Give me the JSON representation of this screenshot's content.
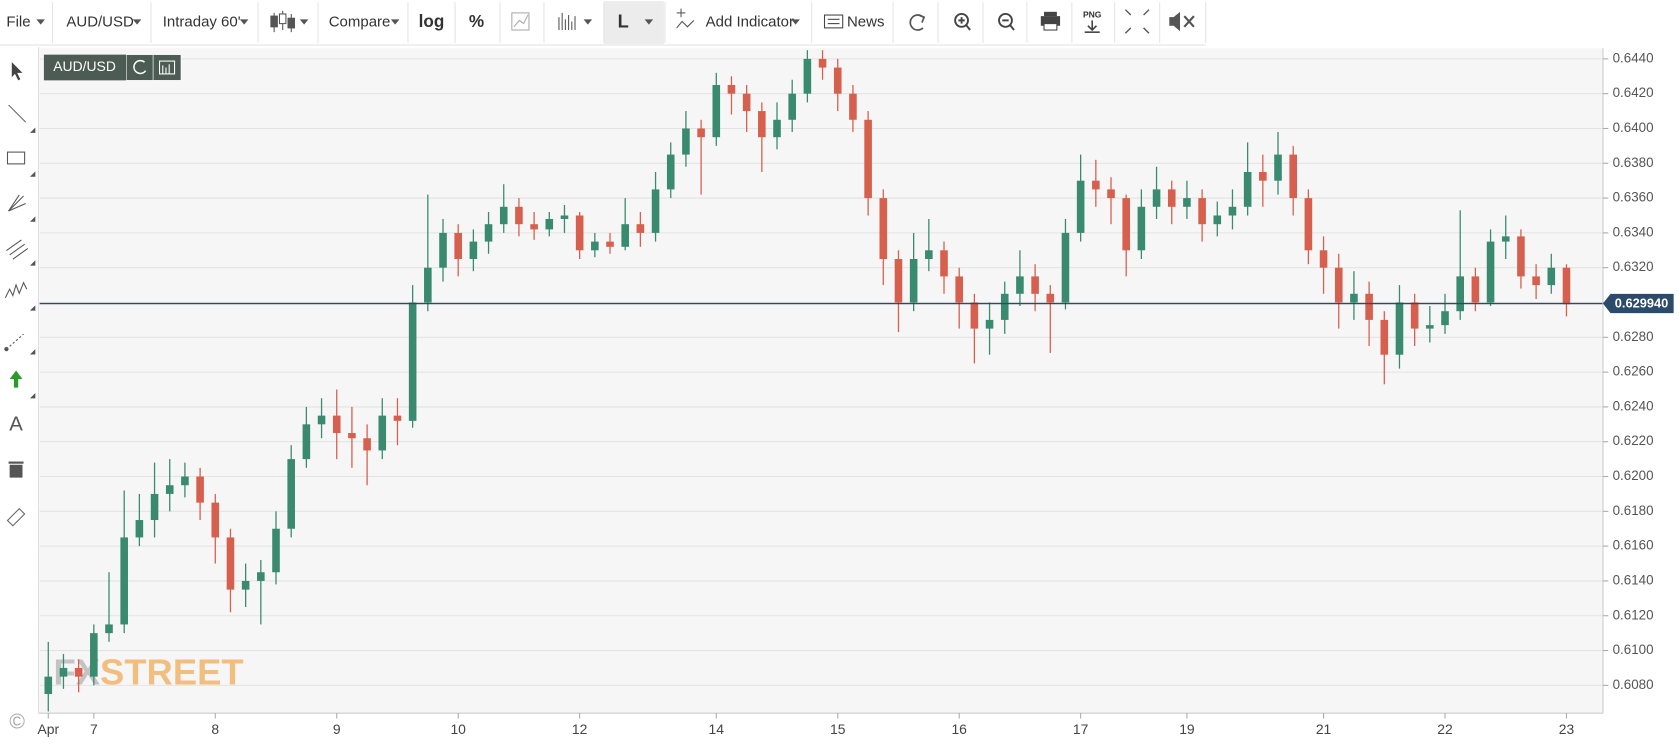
{
  "toolbar": {
    "items": [
      "File",
      "AUD/USD",
      "Intraday 60'",
      "Compare",
      "log",
      "%",
      "L",
      "Add Indicator",
      "News",
      "PNG"
    ]
  },
  "copyright": "©",
  "chart_data": {
    "type": "candlestick",
    "symbol": "AUD/USD",
    "watermark": [
      "FX",
      "STREET"
    ],
    "categories": [
      "Apr",
      null,
      null,
      "7",
      null,
      null,
      null,
      null,
      null,
      null,
      null,
      "8",
      null,
      null,
      null,
      null,
      null,
      null,
      null,
      "9",
      null,
      null,
      null,
      null,
      null,
      null,
      null,
      "10",
      null,
      null,
      null,
      null,
      null,
      null,
      null,
      "12",
      null,
      null,
      null,
      null,
      null,
      null,
      null,
      null,
      "14",
      null,
      null,
      null,
      null,
      null,
      null,
      null,
      "15",
      null,
      null,
      null,
      null,
      null,
      null,
      null,
      "16",
      null,
      null,
      null,
      null,
      null,
      null,
      null,
      "17",
      null,
      null,
      null,
      null,
      null,
      null,
      "19",
      null,
      null,
      null,
      null,
      null,
      null,
      null,
      null,
      "21",
      null,
      null,
      null,
      null,
      null,
      null,
      null,
      "22",
      null,
      null,
      null,
      null,
      null,
      null,
      null,
      "23"
    ],
    "open": [
      0.6075,
      0.6085,
      0.609,
      0.6085,
      0.611,
      0.6115,
      0.6165,
      0.6175,
      0.619,
      0.6195,
      0.62,
      0.6185,
      0.6165,
      0.6135,
      0.614,
      0.6145,
      0.617,
      0.621,
      0.623,
      0.6235,
      0.6225,
      0.6222,
      0.6215,
      0.6235,
      0.6232,
      0.63,
      0.632,
      0.634,
      0.6325,
      0.6335,
      0.6345,
      0.6355,
      0.6345,
      0.6342,
      0.6348,
      0.635,
      0.633,
      0.6335,
      0.6332,
      0.6345,
      0.634,
      0.6365,
      0.6385,
      0.64,
      0.6395,
      0.6425,
      0.642,
      0.641,
      0.6395,
      0.6405,
      0.642,
      0.644,
      0.6435,
      0.642,
      0.6405,
      0.636,
      0.6325,
      0.63,
      0.6325,
      0.633,
      0.6315,
      0.63,
      0.6285,
      0.629,
      0.6305,
      0.6315,
      0.6305,
      0.63,
      0.634,
      0.637,
      0.6365,
      0.636,
      0.633,
      0.6355,
      0.6365,
      0.6355,
      0.636,
      0.6345,
      0.635,
      0.6355,
      0.6375,
      0.637,
      0.6385,
      0.636,
      0.633,
      0.632,
      0.63,
      0.6305,
      0.629,
      0.627,
      0.63,
      0.6285,
      0.6287,
      0.6295,
      0.6315,
      0.63,
      0.6335,
      0.6338,
      0.6315,
      0.631,
      0.632
    ],
    "high": [
      0.6105,
      0.6098,
      0.6095,
      0.6115,
      0.6145,
      0.6192,
      0.619,
      0.6208,
      0.621,
      0.6208,
      0.6205,
      0.619,
      0.617,
      0.615,
      0.6152,
      0.618,
      0.6218,
      0.624,
      0.6245,
      0.625,
      0.624,
      0.623,
      0.6245,
      0.6245,
      0.631,
      0.6362,
      0.6348,
      0.6345,
      0.6342,
      0.6352,
      0.6368,
      0.636,
      0.6352,
      0.6352,
      0.6356,
      0.6352,
      0.634,
      0.634,
      0.636,
      0.6352,
      0.6375,
      0.6392,
      0.641,
      0.6405,
      0.6432,
      0.643,
      0.6425,
      0.6415,
      0.6415,
      0.6428,
      0.6445,
      0.6445,
      0.644,
      0.6425,
      0.641,
      0.6365,
      0.633,
      0.634,
      0.6348,
      0.6335,
      0.632,
      0.6305,
      0.63,
      0.6312,
      0.633,
      0.6322,
      0.631,
      0.6348,
      0.6385,
      0.6382,
      0.6372,
      0.6362,
      0.6365,
      0.6378,
      0.637,
      0.637,
      0.6365,
      0.6358,
      0.6365,
      0.6392,
      0.6385,
      0.6398,
      0.639,
      0.6365,
      0.6338,
      0.6328,
      0.6318,
      0.6312,
      0.6295,
      0.631,
      0.6305,
      0.6298,
      0.6305,
      0.6353,
      0.632,
      0.6342,
      0.635,
      0.6342,
      0.6322,
      0.6328,
      0.6322
    ],
    "low": [
      0.6065,
      0.6078,
      0.6076,
      0.608,
      0.6105,
      0.611,
      0.616,
      0.6165,
      0.618,
      0.6188,
      0.6175,
      0.615,
      0.6122,
      0.6125,
      0.6115,
      0.6138,
      0.6165,
      0.6205,
      0.6222,
      0.621,
      0.6205,
      0.6195,
      0.621,
      0.6218,
      0.6228,
      0.6295,
      0.6312,
      0.6315,
      0.6318,
      0.6328,
      0.634,
      0.6338,
      0.6336,
      0.6338,
      0.634,
      0.6325,
      0.6326,
      0.6328,
      0.633,
      0.6332,
      0.6335,
      0.636,
      0.6378,
      0.6362,
      0.639,
      0.6408,
      0.6398,
      0.6375,
      0.6388,
      0.6398,
      0.6415,
      0.6428,
      0.641,
      0.6398,
      0.635,
      0.631,
      0.6283,
      0.6295,
      0.6318,
      0.6305,
      0.6285,
      0.6265,
      0.627,
      0.6282,
      0.6298,
      0.6295,
      0.6271,
      0.6296,
      0.6335,
      0.6355,
      0.6345,
      0.6315,
      0.6325,
      0.6348,
      0.6345,
      0.6348,
      0.6335,
      0.6338,
      0.6342,
      0.635,
      0.6355,
      0.6362,
      0.635,
      0.6322,
      0.6305,
      0.6285,
      0.629,
      0.6275,
      0.6253,
      0.6262,
      0.6275,
      0.6277,
      0.6282,
      0.629,
      0.6295,
      0.6298,
      0.6325,
      0.6308,
      0.6302,
      0.6305,
      0.6292
    ],
    "close": [
      0.6085,
      0.609,
      0.6085,
      0.611,
      0.6115,
      0.6165,
      0.6175,
      0.619,
      0.6195,
      0.62,
      0.6185,
      0.6165,
      0.6135,
      0.614,
      0.6145,
      0.617,
      0.621,
      0.623,
      0.6235,
      0.6225,
      0.6222,
      0.6215,
      0.6235,
      0.6232,
      0.63,
      0.632,
      0.634,
      0.6325,
      0.6335,
      0.6345,
      0.6355,
      0.6345,
      0.6342,
      0.6348,
      0.635,
      0.633,
      0.6335,
      0.6332,
      0.6345,
      0.634,
      0.6365,
      0.6385,
      0.64,
      0.6395,
      0.6425,
      0.642,
      0.641,
      0.6395,
      0.6405,
      0.642,
      0.644,
      0.6435,
      0.642,
      0.6405,
      0.636,
      0.6325,
      0.63,
      0.6325,
      0.633,
      0.6315,
      0.63,
      0.6285,
      0.629,
      0.6305,
      0.6315,
      0.6305,
      0.63,
      0.634,
      0.637,
      0.6365,
      0.636,
      0.633,
      0.6355,
      0.6365,
      0.6355,
      0.636,
      0.6345,
      0.635,
      0.6355,
      0.6375,
      0.637,
      0.6385,
      0.636,
      0.633,
      0.632,
      0.63,
      0.6305,
      0.629,
      0.627,
      0.63,
      0.6285,
      0.6287,
      0.6295,
      0.6315,
      0.63,
      0.6335,
      0.6338,
      0.6315,
      0.631,
      0.632,
      0.6299
    ],
    "up_color": "#3a8a70",
    "down_color": "#d6604d",
    "ylim": [
      0.6064,
      0.64455
    ],
    "yticks": [
      {
        "value": 0.608,
        "label": "0.6080"
      },
      {
        "value": 0.61,
        "label": "0.6100"
      },
      {
        "value": 0.612,
        "label": "0.6120"
      },
      {
        "value": 0.614,
        "label": "0.6140"
      },
      {
        "value": 0.616,
        "label": "0.6160"
      },
      {
        "value": 0.618,
        "label": "0.6180"
      },
      {
        "value": 0.62,
        "label": "0.6200"
      },
      {
        "value": 0.622,
        "label": "0.6220"
      },
      {
        "value": 0.624,
        "label": "0.6240"
      },
      {
        "value": 0.626,
        "label": "0.6260"
      },
      {
        "value": 0.628,
        "label": "0.6280"
      },
      {
        "value": 0.63,
        "label": "0.6300"
      },
      {
        "value": 0.632,
        "label": "0.6320"
      },
      {
        "value": 0.634,
        "label": "0.6340"
      },
      {
        "value": 0.636,
        "label": "0.6360"
      },
      {
        "value": 0.638,
        "label": "0.6380"
      },
      {
        "value": 0.64,
        "label": "0.6400"
      },
      {
        "value": 0.642,
        "label": "0.6420"
      },
      {
        "value": 0.644,
        "label": "0.6440"
      }
    ],
    "grid": true,
    "current_price": {
      "value": 0.62994,
      "label": "0.629940"
    },
    "price_line_color": "#2c4a6a"
  }
}
